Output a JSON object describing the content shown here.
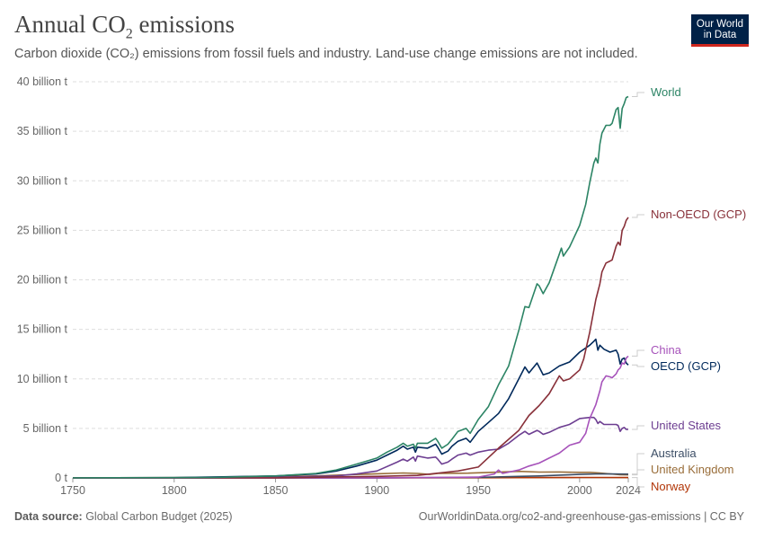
{
  "header": {
    "title_main": "Annual CO",
    "title_sub": "2",
    "title_end": " emissions",
    "subtitle": "Carbon dioxide (CO₂) emissions from fossil fuels and industry. Land-use change emissions are not included."
  },
  "logo": {
    "line1": "Our World",
    "line2": "in Data"
  },
  "footer": {
    "source_label": "Data source:",
    "source_text": " Global Carbon Budget (2025)",
    "url_text": "OurWorldinData.org/co2-and-greenhouse-gas-emissions | CC BY"
  },
  "chart_data": {
    "type": "line",
    "title": "Annual CO₂ emissions",
    "xlim": [
      1750,
      2024
    ],
    "ylim": [
      0,
      40
    ],
    "x_ticks": [
      1750,
      1800,
      1850,
      1900,
      1950,
      2000,
      2024
    ],
    "y_ticks": [
      {
        "value": 0,
        "label": "0 t"
      },
      {
        "value": 5,
        "label": "5 billion t"
      },
      {
        "value": 10,
        "label": "10 billion t"
      },
      {
        "value": 15,
        "label": "15 billion t"
      },
      {
        "value": 20,
        "label": "20 billion t"
      },
      {
        "value": 25,
        "label": "25 billion t"
      },
      {
        "value": 30,
        "label": "30 billion t"
      },
      {
        "value": 35,
        "label": "35 billion t"
      },
      {
        "value": 40,
        "label": "40 billion t"
      }
    ],
    "grid": true,
    "legend": "right",
    "series": [
      {
        "name": "World",
        "color": "#2c8465",
        "points": [
          [
            1750,
            0.01
          ],
          [
            1800,
            0.03
          ],
          [
            1820,
            0.05
          ],
          [
            1850,
            0.2
          ],
          [
            1870,
            0.45
          ],
          [
            1880,
            0.8
          ],
          [
            1890,
            1.4
          ],
          [
            1900,
            2.0
          ],
          [
            1905,
            2.6
          ],
          [
            1910,
            3.1
          ],
          [
            1913,
            3.5
          ],
          [
            1915,
            3.2
          ],
          [
            1918,
            3.4
          ],
          [
            1919,
            3.0
          ],
          [
            1920,
            3.5
          ],
          [
            1925,
            3.5
          ],
          [
            1929,
            4.0
          ],
          [
            1930,
            3.7
          ],
          [
            1932,
            3.0
          ],
          [
            1935,
            3.4
          ],
          [
            1937,
            3.9
          ],
          [
            1940,
            4.7
          ],
          [
            1944,
            5.0
          ],
          [
            1946,
            4.5
          ],
          [
            1950,
            5.9
          ],
          [
            1955,
            7.2
          ],
          [
            1960,
            9.4
          ],
          [
            1965,
            11.3
          ],
          [
            1970,
            14.9
          ],
          [
            1973,
            17.3
          ],
          [
            1975,
            17.2
          ],
          [
            1979,
            19.6
          ],
          [
            1980,
            19.4
          ],
          [
            1982,
            18.6
          ],
          [
            1985,
            19.7
          ],
          [
            1990,
            22.6
          ],
          [
            1991,
            23.2
          ],
          [
            1992,
            22.4
          ],
          [
            1995,
            23.3
          ],
          [
            2000,
            25.5
          ],
          [
            2003,
            27.6
          ],
          [
            2005,
            29.8
          ],
          [
            2007,
            31.8
          ],
          [
            2008,
            32.3
          ],
          [
            2009,
            31.8
          ],
          [
            2010,
            33.7
          ],
          [
            2011,
            34.8
          ],
          [
            2013,
            35.6
          ],
          [
            2015,
            35.6
          ],
          [
            2016,
            35.8
          ],
          [
            2018,
            37.2
          ],
          [
            2019,
            37.4
          ],
          [
            2020,
            35.3
          ],
          [
            2021,
            37.3
          ],
          [
            2022,
            37.8
          ],
          [
            2023,
            38.4
          ],
          [
            2024,
            38.5
          ]
        ]
      },
      {
        "name": "Non-OECD (GCP)",
        "color": "#883039",
        "points": [
          [
            1750,
            0.0
          ],
          [
            1850,
            0.01
          ],
          [
            1900,
            0.15
          ],
          [
            1920,
            0.25
          ],
          [
            1940,
            0.7
          ],
          [
            1950,
            1.1
          ],
          [
            1960,
            3.0
          ],
          [
            1970,
            4.8
          ],
          [
            1975,
            6.3
          ],
          [
            1980,
            7.3
          ],
          [
            1985,
            8.5
          ],
          [
            1990,
            10.3
          ],
          [
            1992,
            9.8
          ],
          [
            1995,
            10.0
          ],
          [
            2000,
            10.9
          ],
          [
            2002,
            12.0
          ],
          [
            2005,
            14.7
          ],
          [
            2008,
            18.0
          ],
          [
            2010,
            19.6
          ],
          [
            2011,
            20.8
          ],
          [
            2013,
            21.7
          ],
          [
            2015,
            21.9
          ],
          [
            2016,
            22.0
          ],
          [
            2018,
            23.4
          ],
          [
            2019,
            23.8
          ],
          [
            2020,
            23.5
          ],
          [
            2021,
            25.0
          ],
          [
            2022,
            25.4
          ],
          [
            2023,
            26.0
          ],
          [
            2024,
            26.3
          ]
        ]
      },
      {
        "name": "China",
        "color": "#a652ba",
        "points": [
          [
            1750,
            0.0
          ],
          [
            1900,
            0.01
          ],
          [
            1950,
            0.08
          ],
          [
            1958,
            0.4
          ],
          [
            1960,
            0.8
          ],
          [
            1962,
            0.45
          ],
          [
            1970,
            0.8
          ],
          [
            1975,
            1.2
          ],
          [
            1980,
            1.5
          ],
          [
            1985,
            2.0
          ],
          [
            1990,
            2.5
          ],
          [
            1995,
            3.3
          ],
          [
            2000,
            3.6
          ],
          [
            2003,
            4.5
          ],
          [
            2005,
            6.0
          ],
          [
            2008,
            7.4
          ],
          [
            2010,
            8.8
          ],
          [
            2011,
            9.7
          ],
          [
            2013,
            10.3
          ],
          [
            2015,
            10.2
          ],
          [
            2016,
            10.1
          ],
          [
            2018,
            10.5
          ],
          [
            2019,
            10.9
          ],
          [
            2020,
            11.1
          ],
          [
            2021,
            11.6
          ],
          [
            2022,
            11.5
          ],
          [
            2023,
            12.1
          ],
          [
            2024,
            12.3
          ]
        ]
      },
      {
        "name": "OECD (GCP)",
        "color": "#00295b",
        "points": [
          [
            1750,
            0.01
          ],
          [
            1800,
            0.03
          ],
          [
            1850,
            0.2
          ],
          [
            1870,
            0.4
          ],
          [
            1880,
            0.7
          ],
          [
            1890,
            1.2
          ],
          [
            1900,
            1.8
          ],
          [
            1905,
            2.3
          ],
          [
            1910,
            2.8
          ],
          [
            1913,
            3.2
          ],
          [
            1915,
            2.9
          ],
          [
            1918,
            3.1
          ],
          [
            1919,
            2.6
          ],
          [
            1920,
            3.1
          ],
          [
            1925,
            3.0
          ],
          [
            1929,
            3.4
          ],
          [
            1930,
            3.1
          ],
          [
            1932,
            2.4
          ],
          [
            1935,
            2.7
          ],
          [
            1937,
            3.2
          ],
          [
            1940,
            3.7
          ],
          [
            1944,
            4.0
          ],
          [
            1946,
            3.6
          ],
          [
            1950,
            4.7
          ],
          [
            1955,
            5.6
          ],
          [
            1960,
            6.5
          ],
          [
            1965,
            8.0
          ],
          [
            1970,
            10.0
          ],
          [
            1973,
            11.2
          ],
          [
            1975,
            10.6
          ],
          [
            1979,
            11.6
          ],
          [
            1980,
            11.2
          ],
          [
            1982,
            10.4
          ],
          [
            1985,
            10.6
          ],
          [
            1990,
            11.3
          ],
          [
            1995,
            11.7
          ],
          [
            2000,
            12.7
          ],
          [
            2005,
            13.4
          ],
          [
            2007,
            13.8
          ],
          [
            2008,
            14.0
          ],
          [
            2009,
            12.9
          ],
          [
            2010,
            13.4
          ],
          [
            2012,
            13.0
          ],
          [
            2015,
            12.7
          ],
          [
            2018,
            12.9
          ],
          [
            2019,
            12.5
          ],
          [
            2020,
            11.5
          ],
          [
            2021,
            12.0
          ],
          [
            2022,
            12.1
          ],
          [
            2023,
            11.6
          ],
          [
            2024,
            11.4
          ]
        ]
      },
      {
        "name": "United States",
        "color": "#6d3e91",
        "points": [
          [
            1750,
            0.0
          ],
          [
            1800,
            0.003
          ],
          [
            1850,
            0.05
          ],
          [
            1870,
            0.15
          ],
          [
            1880,
            0.2
          ],
          [
            1890,
            0.4
          ],
          [
            1900,
            0.7
          ],
          [
            1910,
            1.6
          ],
          [
            1913,
            1.9
          ],
          [
            1915,
            1.7
          ],
          [
            1918,
            2.1
          ],
          [
            1919,
            1.7
          ],
          [
            1920,
            2.2
          ],
          [
            1925,
            2.0
          ],
          [
            1929,
            2.1
          ],
          [
            1930,
            1.9
          ],
          [
            1932,
            1.4
          ],
          [
            1935,
            1.6
          ],
          [
            1937,
            1.9
          ],
          [
            1940,
            2.3
          ],
          [
            1944,
            2.5
          ],
          [
            1946,
            2.3
          ],
          [
            1950,
            2.6
          ],
          [
            1955,
            2.8
          ],
          [
            1960,
            2.9
          ],
          [
            1965,
            3.5
          ],
          [
            1970,
            4.3
          ],
          [
            1973,
            4.7
          ],
          [
            1975,
            4.4
          ],
          [
            1979,
            4.8
          ],
          [
            1980,
            4.7
          ],
          [
            1982,
            4.4
          ],
          [
            1985,
            4.6
          ],
          [
            1990,
            5.1
          ],
          [
            1995,
            5.4
          ],
          [
            2000,
            6.0
          ],
          [
            2005,
            6.1
          ],
          [
            2007,
            6.1
          ],
          [
            2008,
            5.9
          ],
          [
            2009,
            5.5
          ],
          [
            2010,
            5.7
          ],
          [
            2012,
            5.4
          ],
          [
            2015,
            5.4
          ],
          [
            2018,
            5.4
          ],
          [
            2019,
            5.3
          ],
          [
            2020,
            4.7
          ],
          [
            2021,
            5.0
          ],
          [
            2022,
            5.1
          ],
          [
            2023,
            4.9
          ],
          [
            2024,
            4.9
          ]
        ]
      },
      {
        "name": "Australia",
        "color": "#3c4e66",
        "points": [
          [
            1750,
            0.0
          ],
          [
            1900,
            0.01
          ],
          [
            1950,
            0.05
          ],
          [
            1970,
            0.15
          ],
          [
            1980,
            0.2
          ],
          [
            1990,
            0.28
          ],
          [
            2000,
            0.35
          ],
          [
            2010,
            0.41
          ],
          [
            2015,
            0.4
          ],
          [
            2020,
            0.39
          ],
          [
            2024,
            0.38
          ]
        ]
      },
      {
        "name": "United Kingdom",
        "color": "#996d39",
        "points": [
          [
            1750,
            0.01
          ],
          [
            1800,
            0.03
          ],
          [
            1850,
            0.12
          ],
          [
            1870,
            0.2
          ],
          [
            1900,
            0.42
          ],
          [
            1913,
            0.5
          ],
          [
            1920,
            0.45
          ],
          [
            1926,
            0.35
          ],
          [
            1930,
            0.45
          ],
          [
            1945,
            0.48
          ],
          [
            1950,
            0.52
          ],
          [
            1960,
            0.58
          ],
          [
            1970,
            0.66
          ],
          [
            1980,
            0.59
          ],
          [
            1990,
            0.6
          ],
          [
            2000,
            0.56
          ],
          [
            2005,
            0.56
          ],
          [
            2010,
            0.5
          ],
          [
            2015,
            0.41
          ],
          [
            2020,
            0.33
          ],
          [
            2024,
            0.31
          ]
        ]
      },
      {
        "name": "Norway",
        "color": "#b13507",
        "points": [
          [
            1750,
            0.0
          ],
          [
            1900,
            0.003
          ],
          [
            1950,
            0.015
          ],
          [
            1970,
            0.03
          ],
          [
            1990,
            0.035
          ],
          [
            2000,
            0.041
          ],
          [
            2010,
            0.043
          ],
          [
            2024,
            0.04
          ]
        ]
      }
    ]
  }
}
